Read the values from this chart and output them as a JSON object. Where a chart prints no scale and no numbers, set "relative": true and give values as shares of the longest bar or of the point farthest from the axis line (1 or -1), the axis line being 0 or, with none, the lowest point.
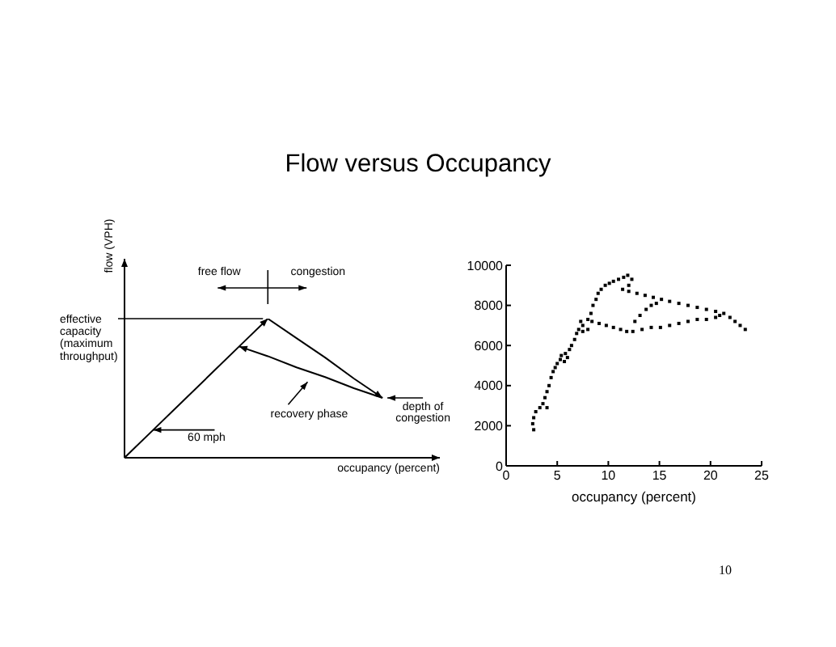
{
  "chart_data": [
    {
      "type": "line",
      "title": "Flow versus Occupancy",
      "xlabel": "occupancy (percent)",
      "ylabel": "flow (VPH)",
      "relative": true,
      "marker": "none",
      "categories": [
        null,
        null,
        null,
        null,
        null,
        null,
        null,
        null,
        null,
        null,
        null,
        null
      ],
      "series": [
        {
          "color": "#000000",
          "values": [
            0,
            0.2,
            0.4,
            0.6,
            0.8,
            1,
            null,
            null,
            null,
            null,
            null,
            null
          ]
        },
        {
          "color": "#000000",
          "values": [
            null,
            null,
            null,
            null,
            null,
            1,
            0.86,
            0.72,
            0.57,
            0.43,
            null,
            null
          ]
        },
        {
          "color": "#000000",
          "values": [
            null,
            null,
            null,
            null,
            0.8,
            0.73,
            0.65,
            0.58,
            0.5,
            0.43,
            null,
            null
          ]
        }
      ],
      "annotations": [
        "free flow",
        "congestion",
        "effective\ncapacity\n(maximum\nthroughput)",
        "60 mph",
        "recovery phase",
        "depth of\ncongestion"
      ]
    },
    {
      "type": "scatter",
      "xlabel": "occupancy (percent)",
      "color": "#000000",
      "marker": "square",
      "xlim": [
        0,
        25
      ],
      "xticks": [
        0,
        5,
        10,
        15,
        20,
        25
      ],
      "ylim": [
        0,
        10000
      ],
      "yticks": [
        0,
        2000,
        4000,
        6000,
        8000,
        10000
      ],
      "x": [
        2.7,
        2.6,
        2.7,
        2.9,
        3.3,
        3.6,
        4.0,
        3.8,
        4.0,
        4.2,
        4.4,
        4.6,
        4.8,
        5.0,
        5.3,
        5.4,
        5.8,
        6.0,
        6.2,
        5.7,
        6.4,
        6.7,
        6.9,
        7.1,
        7.5,
        8.0,
        8.3,
        8.5,
        8.8,
        9.0,
        9.3,
        9.7,
        10.1,
        10.5,
        11.0,
        11.5,
        11.9,
        12.3,
        12.0,
        11.4,
        12.0,
        12.8,
        13.6,
        14.4,
        15.2,
        16.0,
        16.9,
        17.8,
        18.7,
        19.6,
        20.5,
        21.3,
        21.9,
        22.4,
        22.9,
        23.4,
        12.4,
        13.3,
        14.2,
        15.1,
        16.0,
        16.9,
        17.8,
        18.7,
        19.6,
        20.5,
        20.9,
        12.6,
        13.1,
        13.7,
        14.2,
        14.7,
        8.4,
        9.1,
        9.8,
        10.5,
        11.2,
        11.8,
        7.5,
        8.0,
        7.3
      ],
      "values": [
        1800,
        2100,
        2400,
        2700,
        2900,
        3100,
        2900,
        3400,
        3700,
        4000,
        4400,
        4700,
        4900,
        5100,
        5300,
        5500,
        5600,
        5400,
        5800,
        5200,
        6000,
        6300,
        6600,
        6800,
        7000,
        7300,
        7600,
        8000,
        8300,
        8600,
        8800,
        9000,
        9100,
        9200,
        9300,
        9400,
        9500,
        9300,
        9000,
        8800,
        8700,
        8600,
        8500,
        8400,
        8300,
        8200,
        8100,
        8000,
        7900,
        7800,
        7700,
        7600,
        7400,
        7200,
        7000,
        6800,
        6700,
        6800,
        6900,
        6900,
        7000,
        7100,
        7200,
        7300,
        7300,
        7400,
        7500,
        7200,
        7500,
        7800,
        8000,
        8100,
        7200,
        7100,
        7000,
        6900,
        6800,
        6700,
        6700,
        6800,
        7200
      ],
      "annotations": [
        "10"
      ]
    }
  ]
}
